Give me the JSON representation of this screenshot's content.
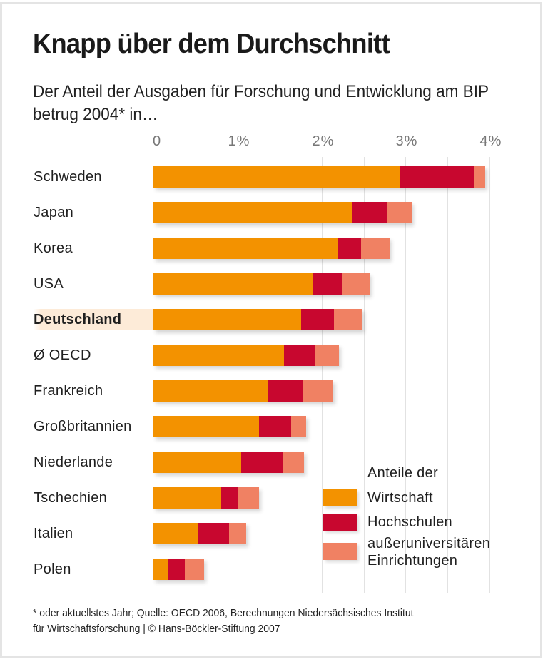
{
  "chart_data": {
    "type": "bar",
    "orientation": "horizontal",
    "stacked": true,
    "title": "Knapp über dem Durchschnitt",
    "subtitle": "Der Anteil der Ausgaben für Forschung und Entwicklung am BIP betrug 2004* in…",
    "xlabel": "",
    "ylabel": "",
    "xlim": [
      0,
      4
    ],
    "x_ticks": [
      "0",
      "1%",
      "2%",
      "3%",
      "4%"
    ],
    "x_tick_values": [
      0,
      1,
      2,
      3,
      4
    ],
    "grid_step": 0.5,
    "grid": true,
    "categories": [
      "Schweden",
      "Japan",
      "Korea",
      "USA",
      "Deutschland",
      "Ø OECD",
      "Frankreich",
      "Großbritannien",
      "Niederlande",
      "Tschechien",
      "Italien",
      "Polen"
    ],
    "highlighted_category": "Deutschland",
    "series": [
      {
        "name": "Wirtschaft",
        "color": "#f39200",
        "values": [
          2.94,
          2.36,
          2.2,
          1.89,
          1.76,
          1.55,
          1.37,
          1.26,
          1.04,
          0.81,
          0.53,
          0.18
        ]
      },
      {
        "name": "Hochschulen",
        "color": "#c8072f",
        "values": [
          0.87,
          0.42,
          0.27,
          0.35,
          0.39,
          0.37,
          0.41,
          0.38,
          0.5,
          0.19,
          0.37,
          0.19
        ]
      },
      {
        "name": "außeruniversitären Einrichtungen",
        "color": "#f08163",
        "values": [
          0.14,
          0.29,
          0.34,
          0.33,
          0.34,
          0.29,
          0.36,
          0.18,
          0.25,
          0.26,
          0.2,
          0.23
        ]
      }
    ],
    "legend": {
      "title": "Anteile der",
      "entries": [
        "Wirtschaft",
        "Hochschulen",
        "außeruniversitären Einrichtungen"
      ],
      "placement": "bottom-right"
    }
  },
  "legend_lines": {
    "third_line1": "außeruniversitären",
    "third_line2": "Einrichtungen"
  },
  "footer": {
    "line1": "* oder aktuellstes Jahr; Quelle: OECD 2006, Berechnungen Niedersächsisches Institut",
    "line2": "für Wirtschaftsforschung | © Hans-Böckler-Stiftung 2007"
  }
}
